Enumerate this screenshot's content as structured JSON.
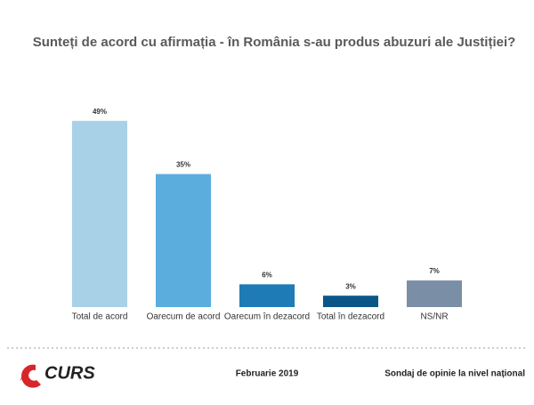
{
  "chart_data": {
    "type": "bar",
    "title": "Sunteți de acord cu afirmația - în România s-au produs abuzuri ale Justiției?",
    "categories": [
      "Total de acord",
      "Oarecum de acord",
      "Oarecum în dezacord",
      "Total în dezacord",
      "NS/NR"
    ],
    "values": [
      49,
      35,
      6,
      3,
      7
    ],
    "value_labels": [
      "49%",
      "35%",
      "6%",
      "3%",
      "7%"
    ],
    "colors": [
      "#a8d1e8",
      "#5badde",
      "#1f7bb6",
      "#0b5689",
      "#7a8ea6"
    ]
  },
  "footer": {
    "logo": "CURS",
    "date": "Februarie 2019",
    "source": "Sondaj de opinie la nivel național"
  }
}
